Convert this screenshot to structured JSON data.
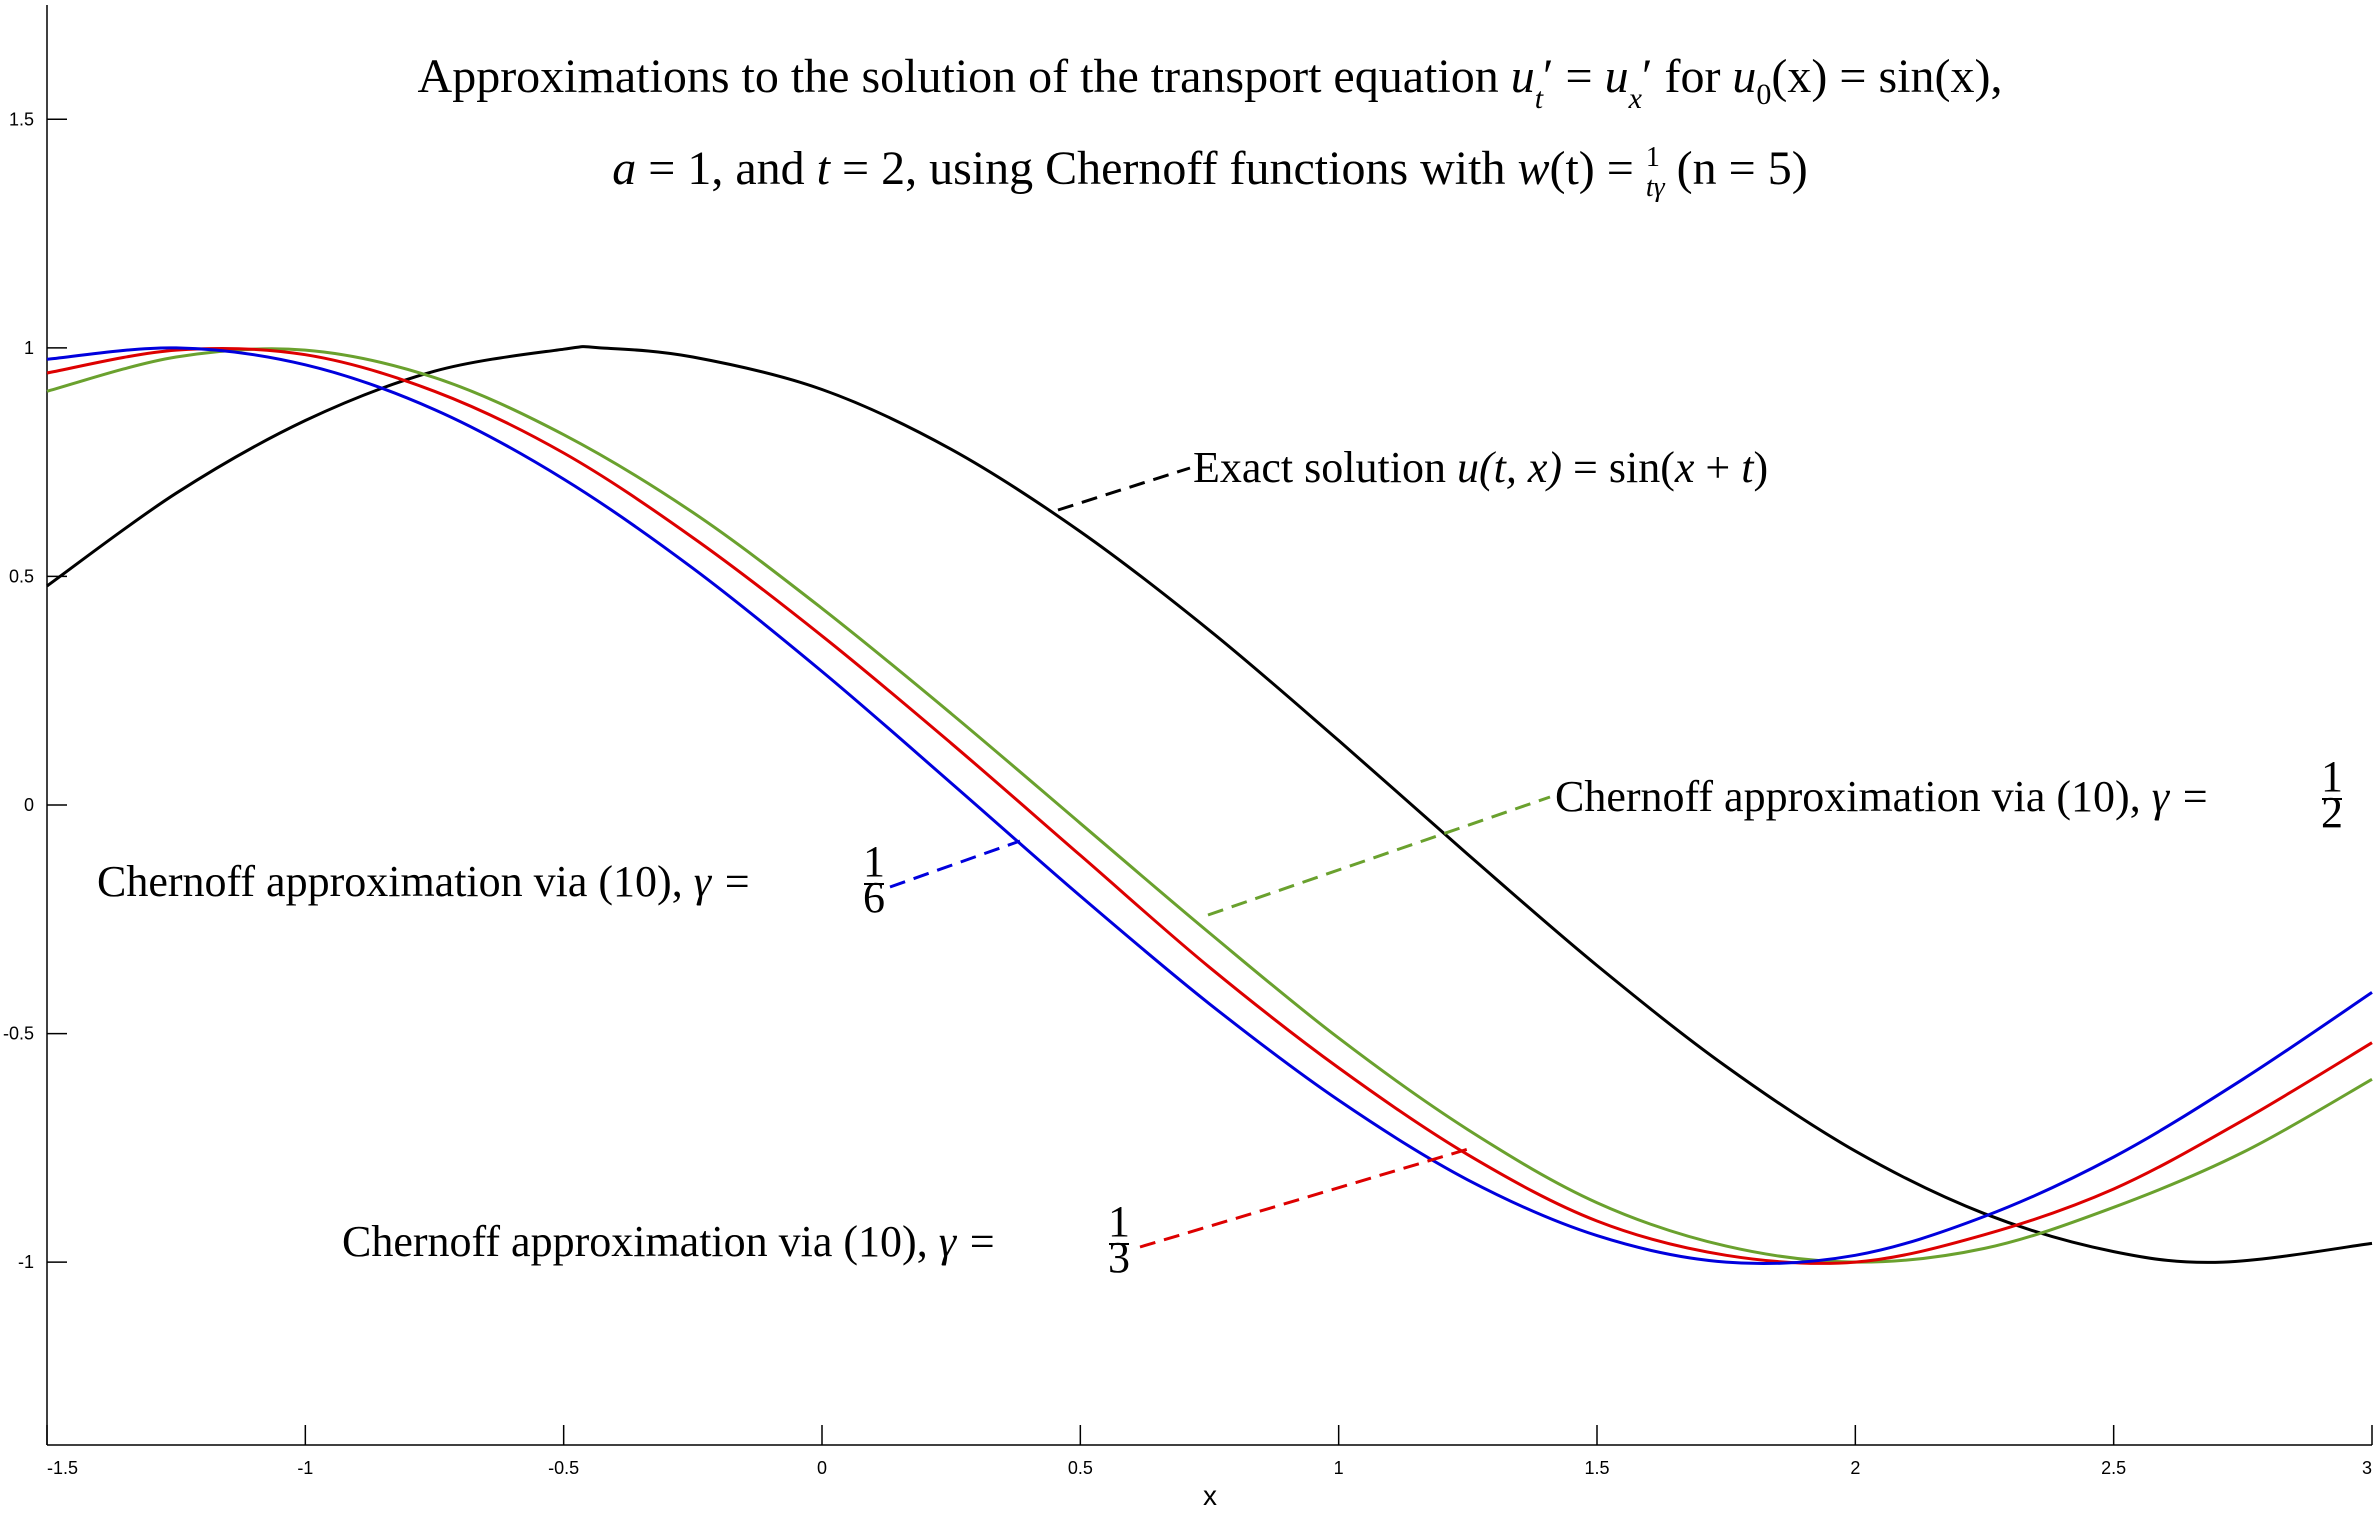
{
  "chart_data": {
    "type": "line",
    "title_line1": "Approximations to the solution of the transport equation u′t = u′x for u0(x) = sin(x),",
    "title_line2": "a = 1, and t = 2, using Chernoff functions with w(t) = 1/tγ (n = 5)",
    "xlabel": "x",
    "ylabel": "",
    "xlim": [
      -1.5,
      3
    ],
    "ylim": [
      -1.4,
      1.75
    ],
    "x_ticks": [
      "-1.5",
      "-1",
      "-0.5",
      "0",
      "0.5",
      "1",
      "1.5",
      "2",
      "2.5",
      "3"
    ],
    "y_ticks": [
      "-1",
      "-0.5",
      "0",
      "0.5",
      "1",
      "1.5"
    ],
    "grid": false,
    "legend": "none",
    "series": [
      {
        "key": "exact",
        "annotation": "Exact solution u(t, x) = sin(x + t)",
        "color": "#000000",
        "x": [
          -1.5,
          -1.25,
          -1.0,
          -0.75,
          -0.5,
          -0.4292,
          -0.25,
          0.0,
          0.25,
          0.5,
          0.75,
          1.0,
          1.25,
          1.5,
          1.75,
          2.0,
          2.25,
          2.5,
          2.7124,
          3.0
        ],
        "y": [
          0.479,
          0.682,
          0.841,
          0.949,
          0.997,
          1.0,
          0.98,
          0.909,
          0.778,
          0.598,
          0.382,
          0.141,
          -0.108,
          -0.351,
          -0.572,
          -0.757,
          -0.894,
          -0.977,
          -1.0,
          -0.959
        ]
      },
      {
        "key": "gamma_1_6",
        "annotation": "Chernoff approximation via (10), γ = 1/6",
        "color": "#0000dd",
        "x": [
          -1.5,
          -1.25,
          -1.0,
          -0.75,
          -0.5,
          -0.25,
          0.0,
          0.25,
          0.5,
          0.75,
          1.0,
          1.25,
          1.5,
          1.75,
          2.0,
          2.25,
          2.5,
          2.75,
          3.0
        ],
        "y": [
          0.975,
          1.0,
          0.963,
          0.865,
          0.713,
          0.518,
          0.292,
          0.048,
          -0.199,
          -0.435,
          -0.646,
          -0.82,
          -0.942,
          -1.0,
          -0.985,
          -0.9,
          -0.77,
          -0.6,
          -0.41
        ]
      },
      {
        "key": "gamma_1_3",
        "annotation": "Chernoff approximation via (10), γ = 1/3",
        "color": "#dd0000",
        "x": [
          -1.5,
          -1.25,
          -1.0,
          -0.75,
          -0.5,
          -0.25,
          0.0,
          0.25,
          0.5,
          0.75,
          1.0,
          1.25,
          1.5,
          1.75,
          2.0,
          2.25,
          2.5,
          2.75,
          3.0
        ],
        "y": [
          0.945,
          0.995,
          0.985,
          0.905,
          0.77,
          0.585,
          0.37,
          0.135,
          -0.11,
          -0.355,
          -0.575,
          -0.765,
          -0.91,
          -0.985,
          -1.0,
          -0.94,
          -0.84,
          -0.69,
          -0.52
        ]
      },
      {
        "key": "gamma_1_2",
        "annotation": "Chernoff approximation via (10), γ = 1/2",
        "color": "#6aa12e",
        "x": [
          -1.5,
          -1.25,
          -1.0,
          -0.75,
          -0.5,
          -0.25,
          0.0,
          0.25,
          0.5,
          0.75,
          1.0,
          1.25,
          1.5,
          1.75,
          2.0,
          2.25,
          2.5,
          2.75,
          3.0
        ],
        "y": [
          0.905,
          0.98,
          0.995,
          0.935,
          0.81,
          0.64,
          0.43,
          0.2,
          -0.04,
          -0.28,
          -0.51,
          -0.71,
          -0.87,
          -0.965,
          -1.0,
          -0.97,
          -0.88,
          -0.76,
          -0.6
        ]
      }
    ]
  },
  "labels": {
    "title1_a": "Approximations to the solution of the transport equation ",
    "title1_u": "u",
    "title1_t": "t",
    "title1_eq": " = ",
    "title1_x": "x",
    "title1_for": " for ",
    "title1_u0": "u",
    "title1_0": "0",
    "title1_rest": "(x) = sin(x),",
    "title2_a": "a",
    "title2_mid1": " = 1, and ",
    "title2_t": "t",
    "title2_mid2": " = 2, using Chernoff functions with ",
    "title2_w": "w",
    "title2_mid3": "(t) = ",
    "title2_one": "1",
    "title2_tg": "tγ",
    "title2_end": " (n = 5)",
    "exact_a": "Exact solution ",
    "exact_b": "u(t, x)",
    "exact_c": " = sin(",
    "exact_d": "x",
    "exact_e": " + ",
    "exact_f": "t",
    "exact_g": ")",
    "cher_text": "Chernoff approximation via (10), ",
    "gamma_eq": "γ = ",
    "frac_num": "1",
    "den_6": "6",
    "den_3": "3",
    "den_2": "2"
  }
}
